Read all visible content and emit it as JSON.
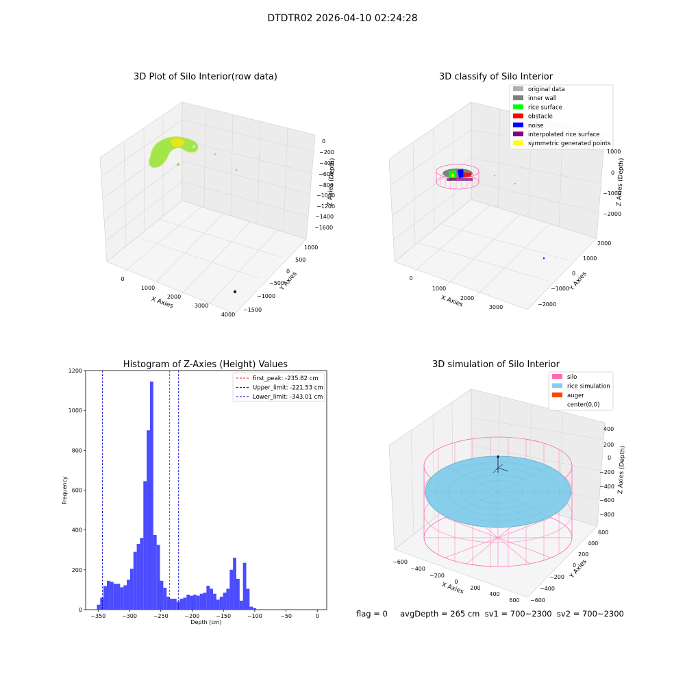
{
  "suptitle": "DTDTR02 2026-04-10 02:24:28",
  "panel1": {
    "title": "3D Plot of Silo Interior(row data)",
    "xlabel": "X Axies",
    "ylabel": "Y Axies",
    "zlabel": "Z Axies (Depth)",
    "xticks": [
      "0",
      "1000",
      "2000",
      "3000",
      "4000"
    ],
    "yticks": [
      "1000",
      "500",
      "0",
      "−500",
      "−1000",
      "−1500"
    ],
    "zticks": [
      "0",
      "−200",
      "−400",
      "−600",
      "−800",
      "−1000",
      "−1200",
      "−1400",
      "−1600"
    ]
  },
  "panel2": {
    "title": "3D classify of Silo Interior",
    "xlabel": "X Axies",
    "ylabel": "Y Axies",
    "zlabel": "Z Axies (Depth)",
    "xticks": [
      "0",
      "1000",
      "2000",
      "3000"
    ],
    "yticks": [
      "2000",
      "1000",
      "0",
      "−1000",
      "−2000"
    ],
    "zticks": [
      "1000",
      "0",
      "−1000",
      "−2000"
    ],
    "legend": [
      {
        "label": "original data",
        "color": "#b0b0b0"
      },
      {
        "label": "inner wall",
        "color": "#808080"
      },
      {
        "label": "rice surface",
        "color": "#00ff00"
      },
      {
        "label": "obstacle",
        "color": "#ff0000"
      },
      {
        "label": "noise",
        "color": "#0000ff"
      },
      {
        "label": "interpolated rice surface",
        "color": "#800080"
      },
      {
        "label": "symmetric generated points",
        "color": "#ffff00"
      }
    ]
  },
  "panel3": {
    "title": "3D simulation of Silo Interior",
    "xlabel": "X Axies",
    "ylabel": "Y Axies",
    "zlabel": "Z Axies (Depth)",
    "xticks": [
      "−600",
      "−400",
      "−200",
      "0",
      "200",
      "400",
      "600"
    ],
    "yticks": [
      "600",
      "400",
      "200",
      "0",
      "−200",
      "−400",
      "−600"
    ],
    "zticks": [
      "400",
      "200",
      "0",
      "−200",
      "−400",
      "−600",
      "−800"
    ],
    "legend": [
      {
        "label": "silo",
        "color": "#ff69b4"
      },
      {
        "label": "rice simulation",
        "color": "#87ceeb"
      },
      {
        "label": "auger",
        "color": "#ff4500"
      },
      {
        "label": "center(0,0)",
        "color": "#ffffff"
      }
    ]
  },
  "info": "flag = 0     avgDepth = 265 cm  sv1 = 700~2300  sv2 = 700~2300",
  "chart_data": [
    {
      "type": "bar",
      "title": "Histogram of Z-Axies (Height) Values",
      "xlabel": "Depth (cm)",
      "ylabel": "Frequency",
      "xlim": [
        -370,
        15
      ],
      "ylim": [
        0,
        1200
      ],
      "xticks": [
        -350,
        -300,
        -250,
        -200,
        -150,
        -100,
        -50,
        0
      ],
      "xtick_labels": [
        "−350",
        "−300",
        "−250",
        "−200",
        "−150",
        "−100",
        "−50",
        "0"
      ],
      "yticks": [
        0,
        200,
        400,
        600,
        800,
        1000,
        1200
      ],
      "bin_width": 5.3,
      "bin_start": -352,
      "color": "#4b4bff",
      "values": [
        25,
        60,
        118,
        145,
        140,
        130,
        130,
        112,
        122,
        150,
        205,
        290,
        330,
        360,
        645,
        900,
        1145,
        375,
        325,
        145,
        110,
        65,
        55,
        55,
        40,
        55,
        60,
        75,
        70,
        75,
        70,
        80,
        85,
        120,
        105,
        80,
        50,
        65,
        85,
        105,
        200,
        260,
        155,
        45,
        235,
        105,
        15,
        8
      ],
      "vlines": [
        {
          "label": "first_peak: -235.82 cm",
          "x": -235.82,
          "color": "#ff0000"
        },
        {
          "label": "Upper_limit: -221.53 cm",
          "x": -221.53,
          "color": "#0000cc"
        },
        {
          "label": "Lower_limit: -343.01 cm",
          "x": -343.01,
          "color": "#0000cc"
        }
      ]
    }
  ]
}
